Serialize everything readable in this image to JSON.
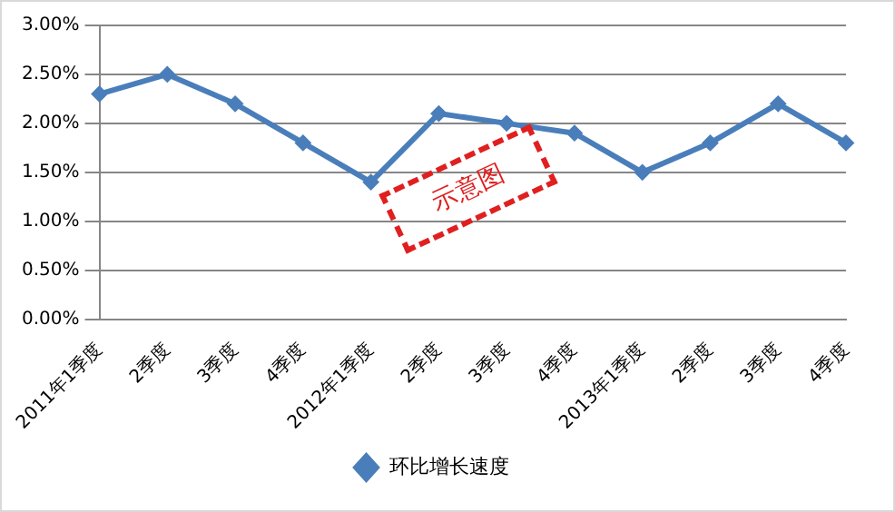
{
  "chart_data": {
    "type": "line",
    "categories": [
      "2011年1季度",
      "2季度",
      "3季度",
      "4季度",
      "2012年1季度",
      "2季度",
      "3季度",
      "4季度",
      "2013年1季度",
      "2季度",
      "3季度",
      "4季度"
    ],
    "series": [
      {
        "name": "环比增长速度",
        "color": "#4a7ebb",
        "values": [
          2.3,
          2.5,
          2.2,
          1.8,
          1.4,
          2.1,
          2.0,
          1.9,
          1.5,
          1.8,
          2.2,
          1.8
        ]
      }
    ],
    "ylim": [
      0,
      3
    ],
    "yticks": [
      {
        "value": 0,
        "label": "0.00%"
      },
      {
        "value": 0.5,
        "label": "0.50%"
      },
      {
        "value": 1,
        "label": "1.00%"
      },
      {
        "value": 1.5,
        "label": "1.50%"
      },
      {
        "value": 2,
        "label": "2.00%"
      },
      {
        "value": 2.5,
        "label": "2.50%"
      },
      {
        "value": 3,
        "label": "3.00%"
      }
    ],
    "grid": "y",
    "legend": "bottom",
    "marker": "diamond",
    "line_style": "solid",
    "annotations": [
      "示意图"
    ]
  }
}
